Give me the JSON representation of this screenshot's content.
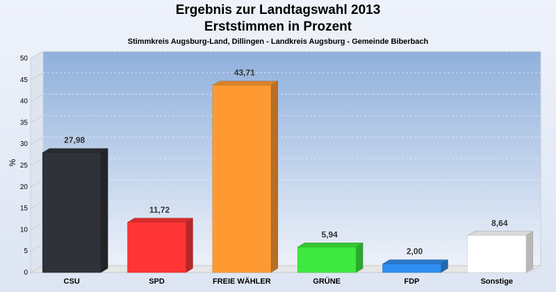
{
  "chart_data": {
    "type": "bar",
    "title": "Ergebnis zur Landtagswahl 2013",
    "title_line2": "Erststimmen in Prozent",
    "subtitle": "Stimmkreis Augsburg-Land, Dillingen - Landkreis Augsburg - Gemeinde Biberbach",
    "ylabel": "%",
    "ylim": [
      0,
      50
    ],
    "yticks": [
      0,
      5,
      10,
      15,
      20,
      25,
      30,
      35,
      40,
      45,
      50
    ],
    "grid": true,
    "categories": [
      "CSU",
      "SPD",
      "FREIE WÄHLER",
      "GRÜNE",
      "FDP",
      "Sonstige"
    ],
    "values": [
      27.98,
      11.72,
      43.71,
      5.94,
      2.0,
      8.64
    ],
    "value_labels": [
      "27,98",
      "11,72",
      "43,71",
      "5,94",
      "2,00",
      "8,64"
    ],
    "colors": [
      "#2f3238",
      "#ff3535",
      "#ff9a33",
      "#3ee83e",
      "#2f8ef0",
      "#ffffff"
    ]
  }
}
